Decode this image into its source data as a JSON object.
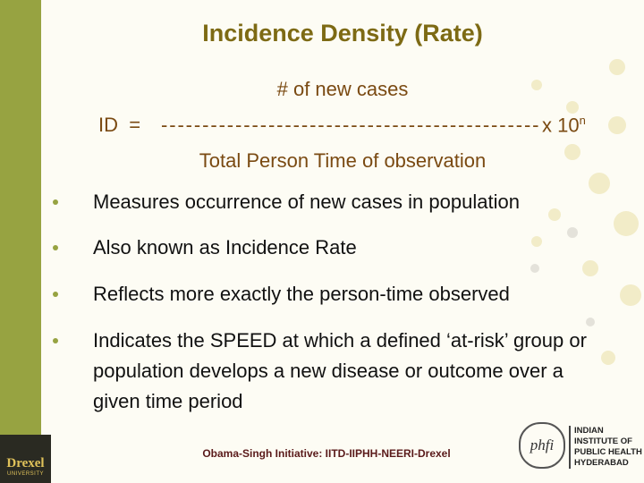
{
  "title": "Incidence Density (Rate)",
  "formula": {
    "numerator": "# of new cases",
    "lhs": "ID  =",
    "divider": "----------------------------------------------",
    "multiplier": "x 10",
    "exponent": "n",
    "denominator": "Total Person Time of observation"
  },
  "bullets": [
    "Measures occurrence of new cases in population",
    "Also known as Incidence Rate",
    "Reflects more exactly the person-time observed",
    "Indicates the SPEED at which a defined ‘at-risk’ group or population develops a new disease or outcome over a given time period"
  ],
  "footer": "Obama-Singh Initiative: IITD-IIPHH-NEERI-Drexel",
  "logos": {
    "left": {
      "name": "Drexel",
      "sub": "UNIVERSITY"
    },
    "right": {
      "mark": "phfi",
      "lines": [
        "INDIAN",
        "INSTITUTE OF",
        "PUBLIC HEALTH",
        "HYDERABAD"
      ]
    }
  }
}
